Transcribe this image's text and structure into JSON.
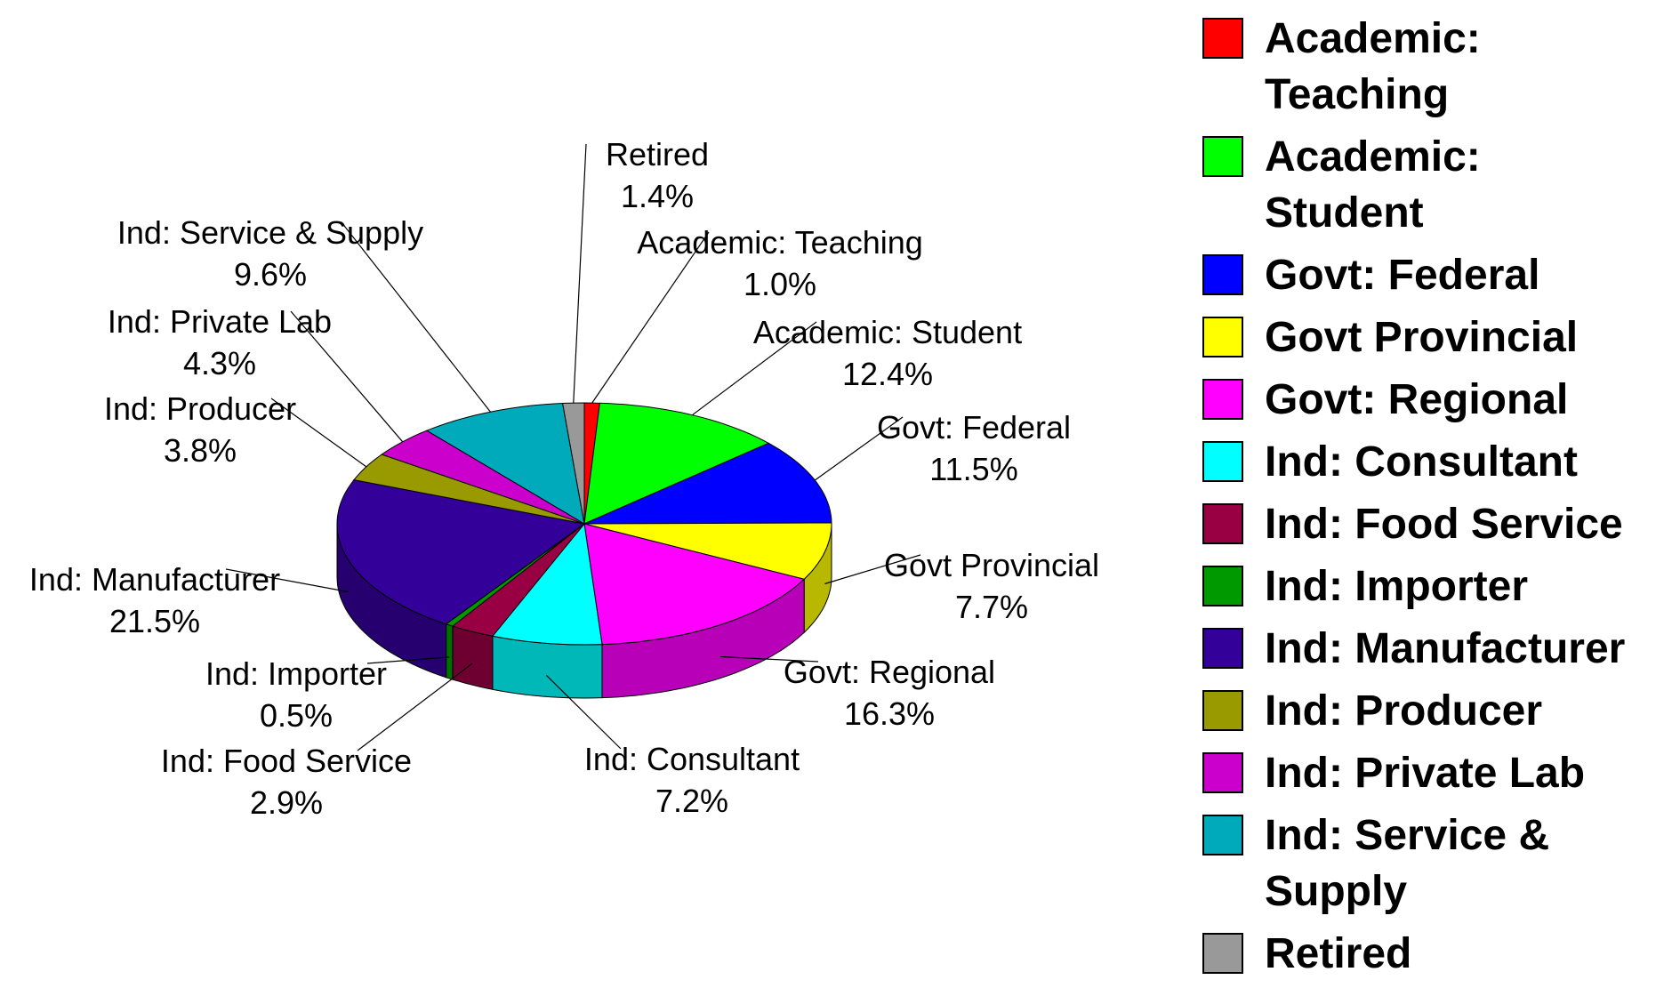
{
  "chart_data": {
    "type": "pie",
    "categories": [
      "Academic: Teaching",
      "Academic: Student",
      "Govt: Federal",
      "Govt Provincial",
      "Govt: Regional",
      "Ind: Consultant",
      "Ind: Food Service",
      "Ind: Importer",
      "Ind: Manufacturer",
      "Ind: Producer",
      "Ind: Private Lab",
      "Ind: Service & Supply",
      "Retired"
    ],
    "values": [
      1.0,
      12.4,
      11.5,
      7.7,
      16.3,
      7.2,
      2.9,
      0.5,
      21.5,
      3.8,
      4.3,
      9.6,
      1.4
    ],
    "value_labels": [
      "1.0%",
      "12.4%",
      "11.5%",
      "7.7%",
      "16.3%",
      "7.2%",
      "2.9%",
      "0.5%",
      "21.5%",
      "3.8%",
      "4.3%",
      "9.6%",
      "1.4%"
    ],
    "colors": [
      "#ff0000",
      "#00ff00",
      "#0000ff",
      "#ffff00",
      "#ff00ff",
      "#00ffff",
      "#990044",
      "#009900",
      "#330099",
      "#999900",
      "#cc00cc",
      "#00aabb",
      "#999999"
    ],
    "legend": "right"
  }
}
